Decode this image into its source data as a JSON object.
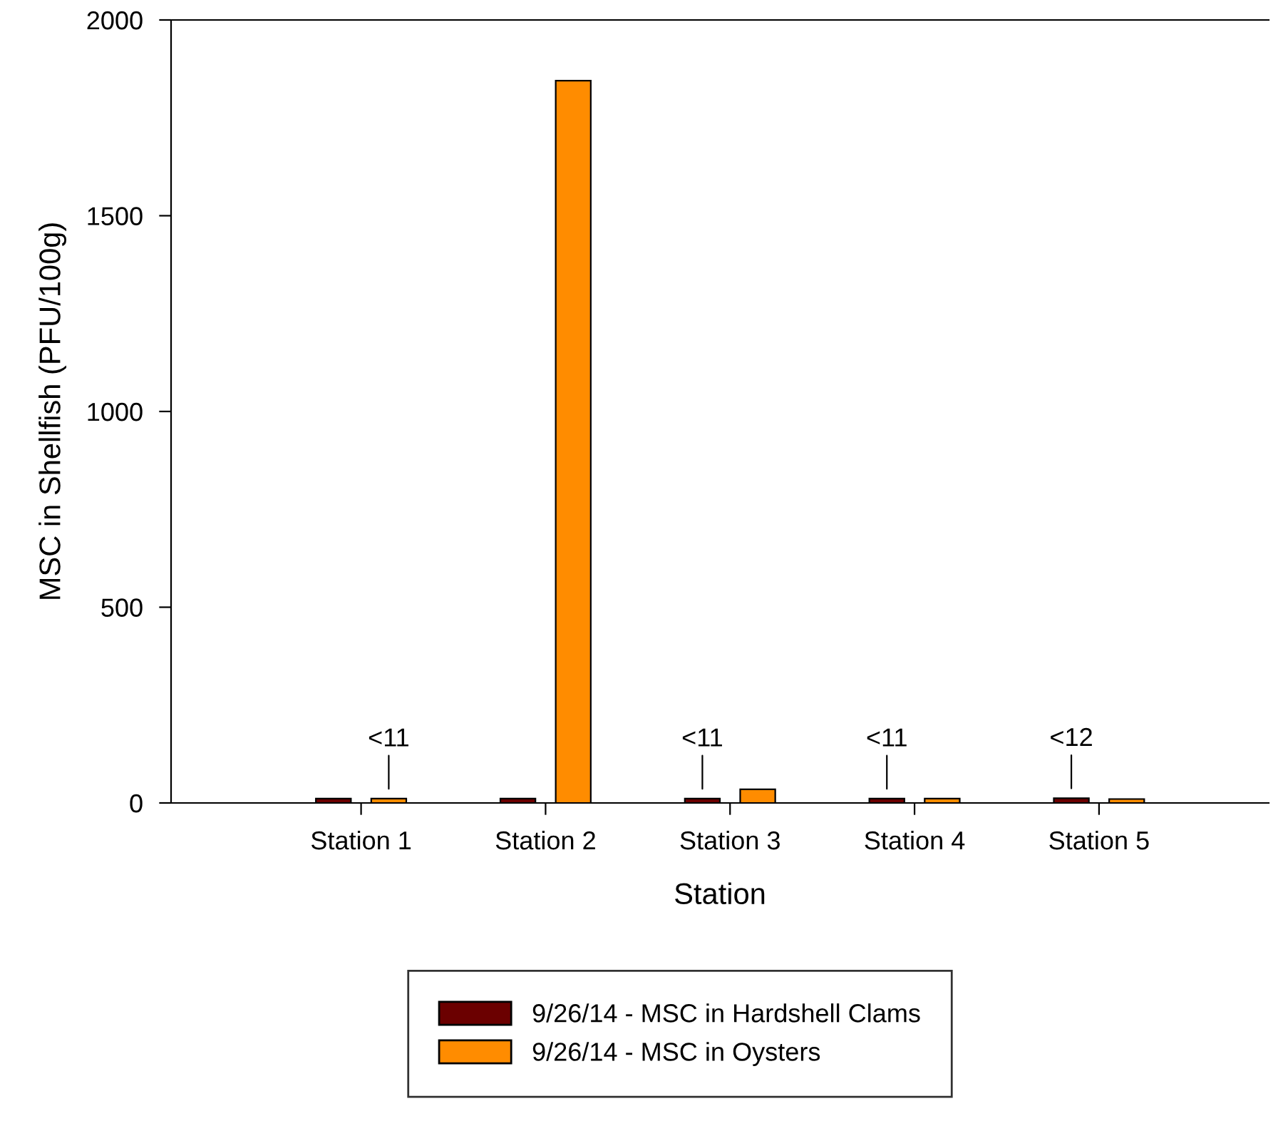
{
  "chart_data": {
    "type": "bar",
    "xlabel": "Station",
    "ylabel": "MSC in Shellfish (PFU/100g)",
    "categories": [
      "Station 1",
      "Station 2",
      "Station 3",
      "Station 4",
      "Station 5"
    ],
    "series": [
      {
        "name": "9/26/14 - MSC in Hardshell Clams",
        "color": "#6b0000",
        "values": [
          11,
          11,
          11,
          11,
          12
        ],
        "value_labels": [
          null,
          null,
          "<11",
          "<11",
          "<12"
        ]
      },
      {
        "name": "9/26/14 - MSC in Oysters",
        "color": "#ff8c00",
        "values": [
          11,
          1845,
          35,
          11,
          10
        ],
        "value_labels": [
          "<11",
          null,
          null,
          null,
          null
        ]
      }
    ],
    "ylim": [
      0,
      2000
    ],
    "yticks": [
      0,
      500,
      1000,
      1500,
      2000
    ],
    "grid": false,
    "legend": "bottom"
  }
}
